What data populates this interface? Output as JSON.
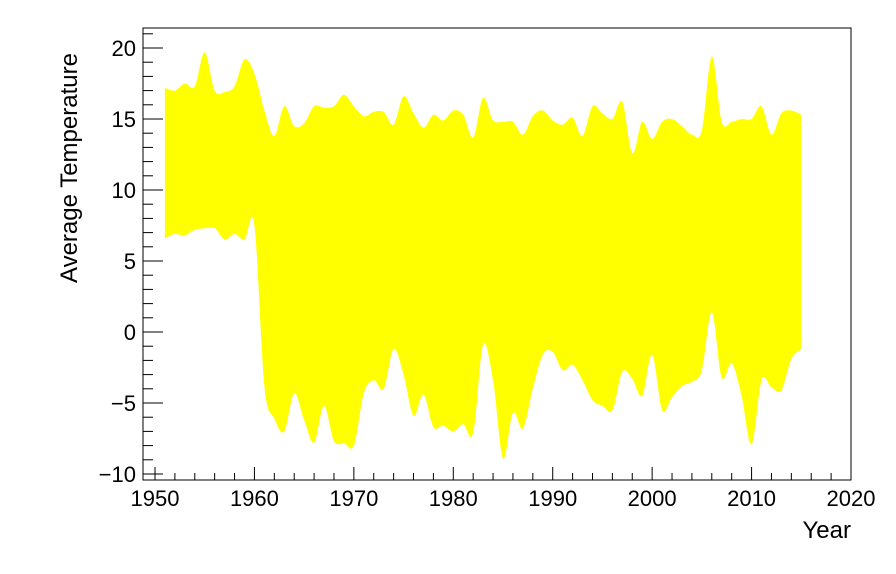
{
  "chart_data": {
    "type": "area",
    "title": "",
    "xlabel": "Year",
    "ylabel": "Average Temperature",
    "xlim": [
      1950,
      2020
    ],
    "ylim": [
      -10,
      21.4
    ],
    "x_ticks": [
      1950,
      1960,
      1970,
      1980,
      1990,
      2000,
      2010,
      2020
    ],
    "y_ticks": [
      -10,
      -5,
      0,
      5,
      10,
      15,
      20
    ],
    "grid": false,
    "fill_color": "#ffff00",
    "series": [
      {
        "x": [
          1951,
          1952,
          1953,
          1954,
          1955,
          1956,
          1957,
          1958,
          1959,
          1960,
          1961,
          1962,
          1963,
          1964,
          1965,
          1966,
          1967,
          1968,
          1969,
          1970,
          1971,
          1972,
          1973,
          1974,
          1975,
          1976,
          1977,
          1978,
          1979,
          1980,
          1981,
          1982,
          1983,
          1984,
          1985,
          1986,
          1987,
          1988,
          1989,
          1990,
          1991,
          1992,
          1993,
          1994,
          1995,
          1996,
          1997,
          1998,
          1999,
          2000,
          2001,
          2002,
          2003,
          2004,
          2005,
          2006,
          2007,
          2008,
          2009,
          2010,
          2011,
          2012,
          2013,
          2014,
          2015
        ],
        "high": [
          17.2,
          17.0,
          17.5,
          17.3,
          19.7,
          17.0,
          16.9,
          17.3,
          19.2,
          18.2,
          15.6,
          13.8,
          15.9,
          14.5,
          14.7,
          15.9,
          15.8,
          15.9,
          16.7,
          15.9,
          15.2,
          15.5,
          15.5,
          14.6,
          16.6,
          15.4,
          14.4,
          15.3,
          14.9,
          15.6,
          15.3,
          13.7,
          16.5,
          14.9,
          14.8,
          14.8,
          13.9,
          15.2,
          15.6,
          14.9,
          14.6,
          15.1,
          13.8,
          15.9,
          15.4,
          15.0,
          16.2,
          12.6,
          14.8,
          13.6,
          14.8,
          15.0,
          14.5,
          13.9,
          14.2,
          19.4,
          14.8,
          14.8,
          15.0,
          15.0,
          15.9,
          13.9,
          15.4,
          15.6,
          15.3
        ],
        "low": [
          6.6,
          6.9,
          6.8,
          7.2,
          7.3,
          7.3,
          6.5,
          6.9,
          6.5,
          7.5,
          -3.8,
          -6.1,
          -7.0,
          -4.3,
          -6.2,
          -7.8,
          -5.2,
          -7.7,
          -7.8,
          -8.0,
          -4.3,
          -3.4,
          -4.0,
          -1.2,
          -3.0,
          -5.9,
          -4.4,
          -6.7,
          -6.6,
          -7.0,
          -6.5,
          -7.1,
          -0.9,
          -3.4,
          -8.9,
          -5.7,
          -6.8,
          -4.0,
          -1.6,
          -1.4,
          -2.7,
          -2.3,
          -3.4,
          -4.8,
          -5.2,
          -5.5,
          -2.8,
          -3.3,
          -4.5,
          -1.6,
          -5.5,
          -4.6,
          -3.8,
          -3.5,
          -2.7,
          1.4,
          -3.2,
          -2.2,
          -4.5,
          -7.9,
          -3.4,
          -3.9,
          -4.1,
          -1.9,
          -1.2
        ]
      }
    ]
  }
}
